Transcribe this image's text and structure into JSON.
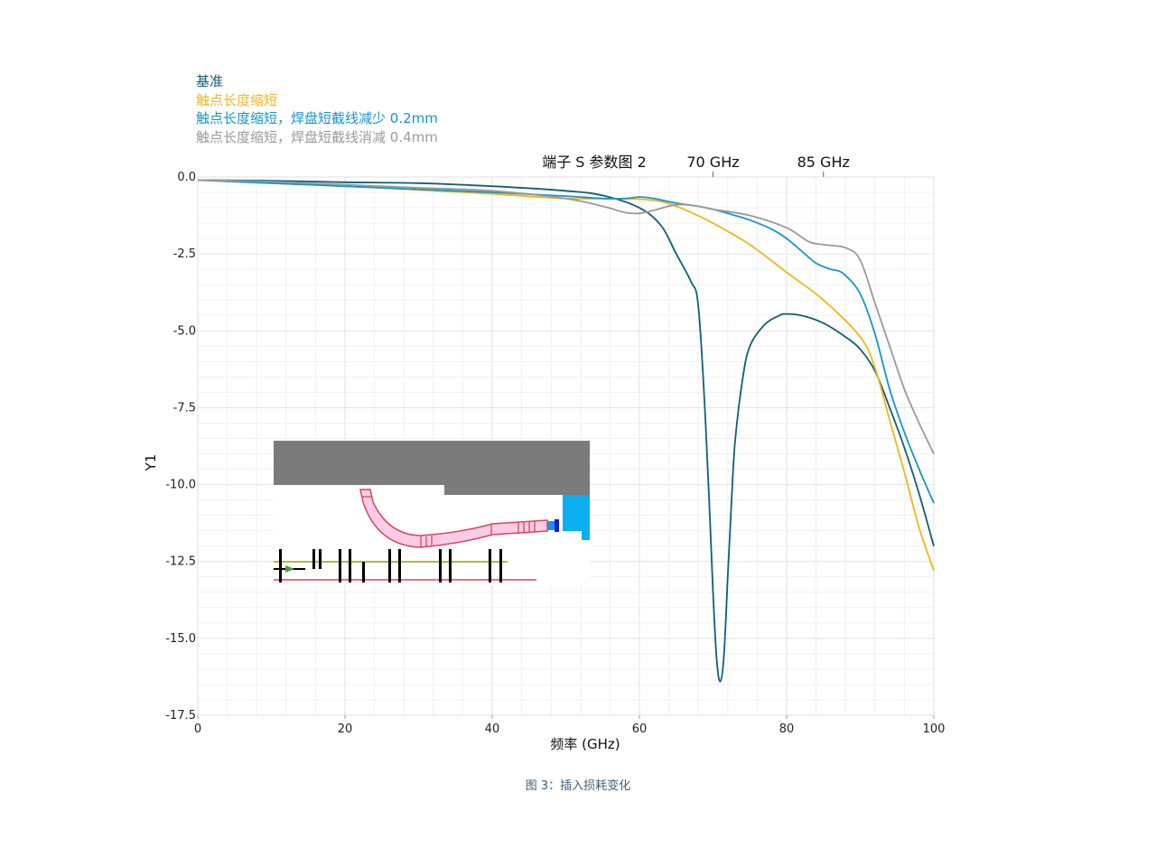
{
  "legend": [
    {
      "label": "基准",
      "color": "#0f5f7a"
    },
    {
      "label": "触点长度缩短",
      "color": "#f2b619"
    },
    {
      "label": "触点长度缩短，焊盘短截线减少 0.2mm",
      "color": "#1696c8"
    },
    {
      "label": "触点长度缩短，焊盘短截线消减 0.4mm",
      "color": "#9a9a9a"
    }
  ],
  "caption": "图 3：插入损耗变化",
  "chart_data": {
    "type": "line",
    "title": "端子 S 参数图 2",
    "markers": [
      {
        "x": 70,
        "label": "70 GHz"
      },
      {
        "x": 85,
        "label": "85 GHz"
      }
    ],
    "xlabel": "频率 (GHz)",
    "ylabel": "Y1",
    "xlim": [
      0,
      100
    ],
    "ylim": [
      -17.5,
      0
    ],
    "xticks": [
      0,
      20,
      40,
      60,
      80,
      100
    ],
    "yticks": [
      0.0,
      -2.5,
      -5.0,
      -7.5,
      -10.0,
      -12.5,
      -15.0,
      -17.5
    ],
    "ytick_labels": [
      "0.0",
      "-2.5",
      "-5.0",
      "-7.5",
      "-10.0",
      "-12.5",
      "-15.0",
      "-17.5"
    ],
    "grid": true,
    "legend_position": "top-left",
    "series": [
      {
        "name": "基准",
        "color": "#0f5f7a",
        "x": [
          0,
          10,
          20,
          30,
          40,
          50,
          55,
          60,
          63,
          65,
          67,
          68,
          69,
          70,
          70.5,
          71,
          71.5,
          72,
          72.5,
          73,
          74,
          75,
          77,
          79,
          80,
          82,
          85,
          88,
          90,
          92,
          94,
          96,
          98,
          100
        ],
        "y": [
          -0.1,
          -0.12,
          -0.17,
          -0.2,
          -0.3,
          -0.45,
          -0.6,
          -1.0,
          -1.6,
          -2.5,
          -3.4,
          -4.2,
          -8.0,
          -13.5,
          -15.7,
          -16.4,
          -15.5,
          -13.0,
          -10.6,
          -8.6,
          -6.6,
          -5.5,
          -4.8,
          -4.5,
          -4.45,
          -4.5,
          -4.75,
          -5.2,
          -5.6,
          -6.3,
          -7.5,
          -8.8,
          -10.3,
          -12.0
        ]
      },
      {
        "name": "触点长度缩短",
        "color": "#f2b619",
        "x": [
          0,
          10,
          20,
          30,
          40,
          50,
          55,
          60,
          63,
          65,
          67,
          70,
          75,
          80,
          85,
          90,
          92,
          94,
          96,
          98,
          100
        ],
        "y": [
          -0.1,
          -0.2,
          -0.3,
          -0.42,
          -0.55,
          -0.7,
          -0.7,
          -0.72,
          -0.8,
          -0.95,
          -1.15,
          -1.5,
          -2.2,
          -3.1,
          -4.0,
          -5.2,
          -6.2,
          -7.9,
          -9.6,
          -11.4,
          -12.8
        ]
      },
      {
        "name": "触点长度缩短，焊盘短截线减少 0.2mm",
        "color": "#1696c8",
        "x": [
          0,
          10,
          20,
          30,
          40,
          50,
          55,
          58,
          60,
          62,
          65,
          68,
          70,
          73,
          75,
          78,
          80,
          82,
          84,
          86,
          87,
          88,
          90,
          92,
          94,
          96,
          98,
          100
        ],
        "y": [
          -0.1,
          -0.2,
          -0.3,
          -0.4,
          -0.5,
          -0.62,
          -0.7,
          -0.7,
          -0.65,
          -0.7,
          -0.85,
          -0.95,
          -1.05,
          -1.25,
          -1.4,
          -1.7,
          -2.0,
          -2.4,
          -2.8,
          -3.0,
          -3.05,
          -3.2,
          -3.8,
          -5.1,
          -6.9,
          -8.3,
          -9.5,
          -10.6
        ]
      },
      {
        "name": "触点长度缩短，焊盘短截线消减 0.4mm",
        "color": "#9a9a9a",
        "x": [
          0,
          10,
          20,
          30,
          40,
          50,
          55,
          58,
          60,
          62,
          65,
          68,
          70,
          75,
          80,
          83,
          85,
          88,
          90,
          92,
          94,
          96,
          98,
          100
        ],
        "y": [
          -0.1,
          -0.15,
          -0.25,
          -0.35,
          -0.45,
          -0.7,
          -0.95,
          -1.15,
          -1.18,
          -1.08,
          -0.9,
          -0.95,
          -1.05,
          -1.25,
          -1.65,
          -2.1,
          -2.2,
          -2.3,
          -2.7,
          -4.1,
          -5.5,
          -6.9,
          -8.0,
          -9.0
        ]
      }
    ]
  }
}
